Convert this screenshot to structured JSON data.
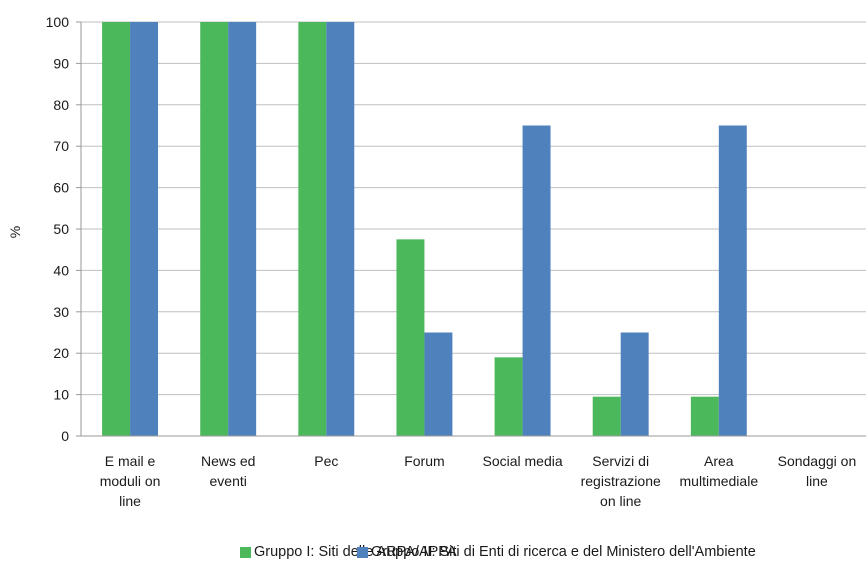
{
  "chart_data": {
    "type": "bar",
    "ylabel": "%",
    "xlabel": "",
    "ylim": [
      0,
      100
    ],
    "yticks": [
      "0",
      "10",
      "20",
      "30",
      "40",
      "50",
      "60",
      "70",
      "80",
      "90",
      "100"
    ],
    "grid": true,
    "legend_position": "bottom",
    "categories": [
      [
        "E mail e",
        "moduli on",
        "line"
      ],
      [
        "News ed",
        "eventi"
      ],
      [
        "Pec"
      ],
      [
        "Forum"
      ],
      [
        "Social media"
      ],
      [
        "Servizi di",
        "registrazione",
        "on line"
      ],
      [
        "Area",
        "multimediale"
      ],
      [
        "Sondaggi on",
        "line"
      ]
    ],
    "series": [
      {
        "name": "Gruppo I: Siti delle ARPA/APPA",
        "color": "#4cb85c",
        "values": [
          100,
          100,
          100,
          47.5,
          19,
          9.5,
          9.5,
          0
        ]
      },
      {
        "name": "Gruppo II: Siti di Enti di ricerca e del Ministero dell'Ambiente",
        "color": "#4f81bd",
        "values": [
          100,
          100,
          100,
          25,
          75,
          25,
          75,
          0
        ]
      }
    ]
  }
}
